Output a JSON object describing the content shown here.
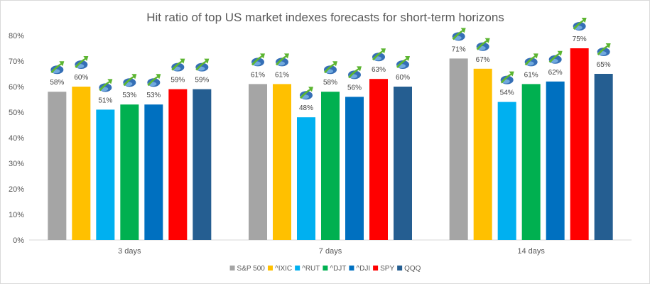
{
  "chart_data": {
    "type": "bar",
    "title": "Hit ratio of top US market indexes forecasts for short-term horizons",
    "categories": [
      "3 days",
      "7 days",
      "14 days"
    ],
    "series": [
      {
        "name": "S&P 500",
        "color": "#a5a5a5",
        "values": [
          58,
          61,
          71
        ]
      },
      {
        "name": "^IXIC",
        "color": "#ffc000",
        "values": [
          60,
          61,
          67
        ]
      },
      {
        "name": "^RUT",
        "color": "#00b0f0",
        "values": [
          51,
          48,
          54
        ]
      },
      {
        "name": "^DJT",
        "color": "#00b050",
        "values": [
          53,
          58,
          61
        ]
      },
      {
        "name": "^DJI",
        "color": "#0070c0",
        "values": [
          53,
          56,
          62
        ]
      },
      {
        "name": "SPY",
        "color": "#ff0000",
        "values": [
          59,
          63,
          75
        ]
      },
      {
        "name": "QQQ",
        "color": "#255e91",
        "values": [
          59,
          60,
          65
        ]
      }
    ],
    "yticks": [
      "0%",
      "10%",
      "20%",
      "30%",
      "40%",
      "50%",
      "60%",
      "70%",
      "80%"
    ],
    "ylim": [
      0,
      80
    ],
    "value_suffix": "%",
    "legend_position": "bottom",
    "grid": false,
    "marker_icon": "rising-arrow-logo-icon"
  }
}
